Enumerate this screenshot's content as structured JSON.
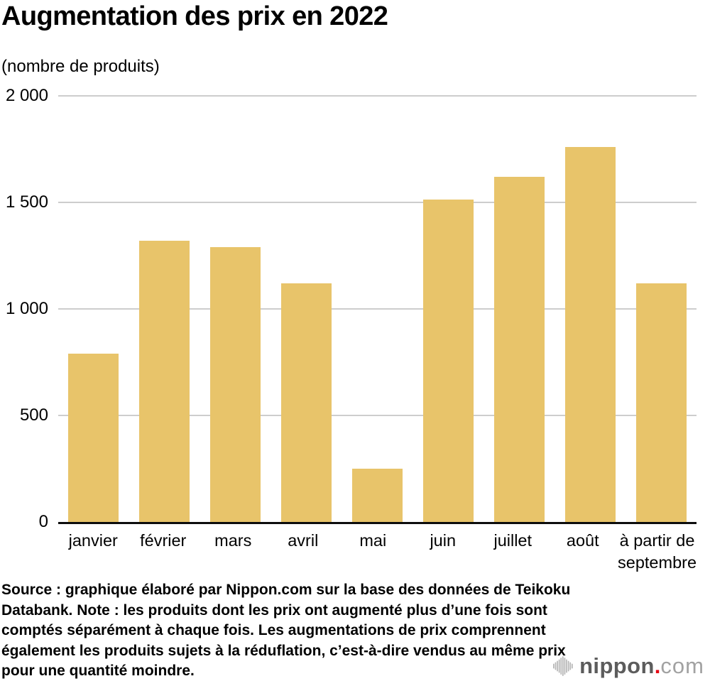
{
  "title": "Augmentation des prix en 2022",
  "subtitle": "(nombre de produits)",
  "chart_data": {
    "type": "bar",
    "categories": [
      "janvier",
      "février",
      "mars",
      "avril",
      "mai",
      "juin",
      "juillet",
      "août",
      "à partir de septembre"
    ],
    "values": [
      790,
      1320,
      1290,
      1120,
      250,
      1515,
      1620,
      1760,
      1120
    ],
    "title": "Augmentation des prix en 2022",
    "xlabel": "",
    "ylabel": "(nombre de produits)",
    "ylim": [
      0,
      2000
    ],
    "yticks": [
      0,
      500,
      1000,
      1500,
      2000
    ],
    "ytick_labels": [
      "0",
      "500",
      "1 000",
      "1 500",
      "2 000"
    ],
    "xtick_wrap": {
      "à partir de septembre": [
        "à partir de",
        "septembre"
      ]
    },
    "grid": true,
    "legend": false,
    "bar_color": "#e8c46a",
    "grid_color": "#cdcdcd",
    "axis_color": "#0d0d0d"
  },
  "source_note": "Source : graphique élaboré par Nippon.com sur la base des données de Teikoku Databank. Note : les produits dont les prix ont augmenté plus d’une fois sont comptés séparément à chaque fois. Les augmentations de prix comprennent également les produits sujets à la réduflation, c’est-à-dire vendus au même prix pour une quantité moindre.",
  "logo": {
    "name": "nippon",
    "dot": ".",
    "tld": "com",
    "name_color": "#5c5c5c",
    "dot_color": "#e60012",
    "tld_color": "#a2a2a2",
    "icon_color": "#b6b6b6"
  }
}
